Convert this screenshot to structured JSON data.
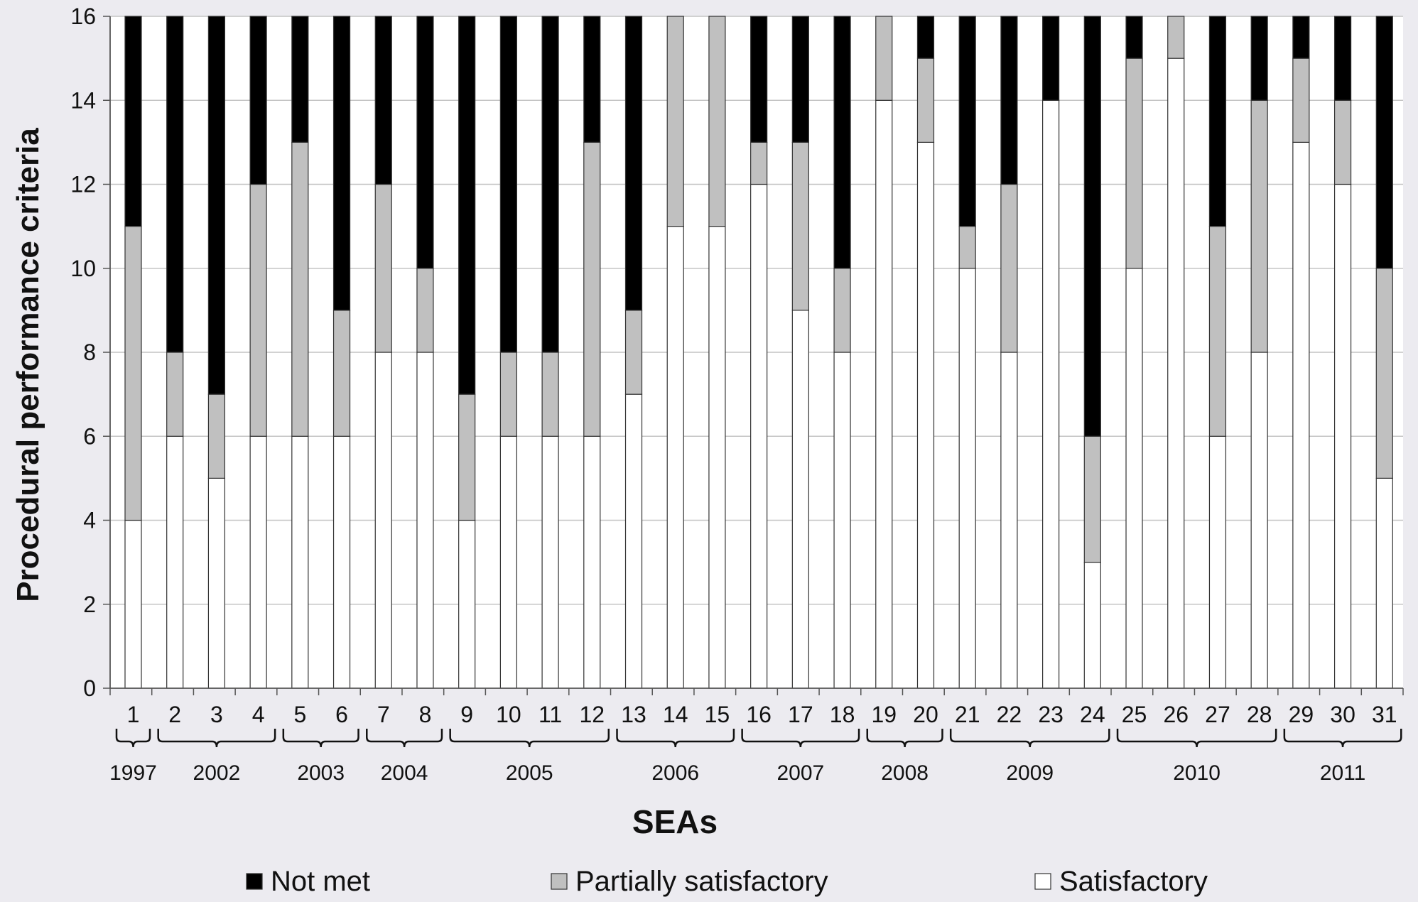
{
  "chart_data": {
    "type": "bar",
    "stacked": true,
    "title": "",
    "xlabel": "SEAs",
    "ylabel": "Procedural performance criteria",
    "ylim": [
      0,
      16
    ],
    "yticks": [
      "0",
      "2",
      "4",
      "6",
      "8",
      "10",
      "12",
      "14",
      "16"
    ],
    "grid": true,
    "legend_position": "bottom",
    "categories": [
      "1",
      "2",
      "3",
      "4",
      "5",
      "6",
      "7",
      "8",
      "9",
      "10",
      "11",
      "12",
      "13",
      "14",
      "15",
      "16",
      "17",
      "18",
      "19",
      "20",
      "21",
      "22",
      "23",
      "24",
      "25",
      "26",
      "27",
      "28",
      "29",
      "30",
      "31"
    ],
    "series": [
      {
        "name": "Satisfactory",
        "color": "#ffffff",
        "values": [
          4,
          6,
          5,
          6,
          6,
          6,
          8,
          8,
          4,
          6,
          6,
          6,
          7,
          11,
          11,
          12,
          9,
          8,
          14,
          13,
          10,
          8,
          14,
          3,
          10,
          15,
          6,
          8,
          13,
          12,
          5
        ]
      },
      {
        "name": "Partially satisfactory",
        "color": "#c0c0c0",
        "values": [
          7,
          2,
          2,
          6,
          7,
          3,
          4,
          2,
          3,
          2,
          2,
          7,
          2,
          5,
          5,
          1,
          4,
          2,
          2,
          2,
          1,
          4,
          0,
          3,
          5,
          1,
          5,
          6,
          2,
          2,
          5
        ]
      },
      {
        "name": "Not met",
        "color": "#000000",
        "values": [
          5,
          8,
          9,
          4,
          3,
          7,
          4,
          6,
          9,
          8,
          8,
          3,
          7,
          0,
          0,
          3,
          3,
          6,
          0,
          1,
          5,
          4,
          2,
          10,
          1,
          0,
          5,
          2,
          1,
          2,
          6
        ]
      }
    ],
    "legend_order": [
      "Not met",
      "Partially satisfactory",
      "Satisfactory"
    ],
    "year_groups": [
      {
        "label": "1997",
        "first": 1,
        "last": 1
      },
      {
        "label": "2002",
        "first": 2,
        "last": 4
      },
      {
        "label": "2003",
        "first": 5,
        "last": 6
      },
      {
        "label": "2004",
        "first": 7,
        "last": 8
      },
      {
        "label": "2005",
        "first": 9,
        "last": 12
      },
      {
        "label": "2006",
        "first": 13,
        "last": 15
      },
      {
        "label": "2007",
        "first": 16,
        "last": 18
      },
      {
        "label": "2008",
        "first": 19,
        "last": 20
      },
      {
        "label": "2009",
        "first": 21,
        "last": 24
      },
      {
        "label": "2010",
        "first": 25,
        "last": 28
      },
      {
        "label": "2011",
        "first": 29,
        "last": 31
      }
    ]
  }
}
